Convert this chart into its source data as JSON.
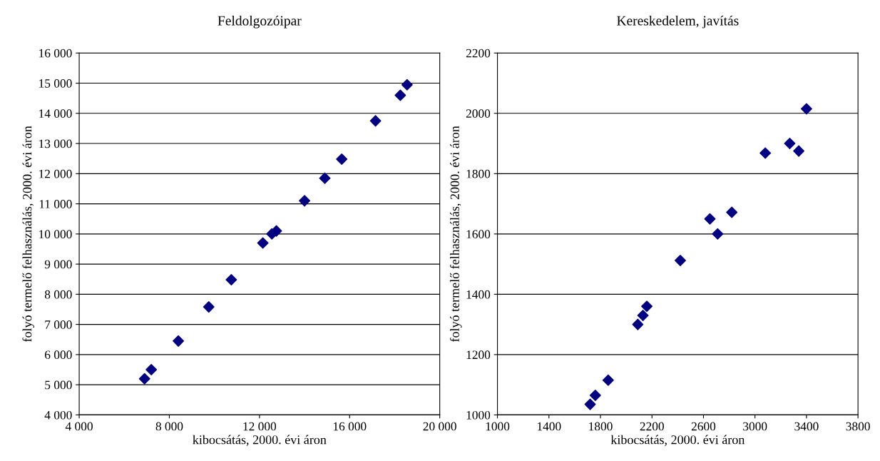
{
  "chart_data": [
    {
      "type": "scatter",
      "title": "Feldolgozóipar",
      "xlabel": "kibocsátás, 2000. évi áron",
      "ylabel": "folyó termelő felhasználás, 2000. évi áron",
      "marker": "diamond",
      "grid": "y",
      "legend": false,
      "x": [
        6900,
        7200,
        8400,
        9750,
        10750,
        12150,
        12550,
        12750,
        14000,
        14900,
        15650,
        17150,
        18250,
        18550
      ],
      "series": [
        {
          "color": "#000080",
          "values": [
            5200,
            5500,
            6450,
            7580,
            8480,
            9700,
            10000,
            10100,
            11100,
            11850,
            12480,
            13750,
            14600,
            14950
          ]
        }
      ],
      "xlim": [
        4000,
        20000
      ],
      "xticks": [
        {
          "value": 4000,
          "label": "4 000"
        },
        {
          "value": 8000,
          "label": "8 000"
        },
        {
          "value": 12000,
          "label": "12 000"
        },
        {
          "value": 16000,
          "label": "16 000"
        },
        {
          "value": 20000,
          "label": "20 000"
        }
      ],
      "ylim": [
        4000,
        16000
      ],
      "yticks": [
        {
          "value": 4000,
          "label": "4 000"
        },
        {
          "value": 5000,
          "label": "5 000"
        },
        {
          "value": 6000,
          "label": "6 000"
        },
        {
          "value": 7000,
          "label": "7 000"
        },
        {
          "value": 8000,
          "label": "8 000"
        },
        {
          "value": 9000,
          "label": "9 000"
        },
        {
          "value": 10000,
          "label": "10 000"
        },
        {
          "value": 11000,
          "label": "11 000"
        },
        {
          "value": 12000,
          "label": "12 000"
        },
        {
          "value": 13000,
          "label": "13 000"
        },
        {
          "value": 14000,
          "label": "14 000"
        },
        {
          "value": 15000,
          "label": "15 000"
        },
        {
          "value": 16000,
          "label": "16 000"
        }
      ]
    },
    {
      "type": "scatter",
      "title": "Kereskedelem, javítás",
      "xlabel": "kibocsátás, 2000. évi áron",
      "ylabel": "folyó termelő felhasználás, 2000. évi áron",
      "marker": "diamond",
      "grid": "y",
      "legend": false,
      "x": [
        1720,
        1760,
        1860,
        2090,
        2130,
        2160,
        2420,
        2650,
        2710,
        2820,
        3080,
        3270,
        3340,
        3400
      ],
      "series": [
        {
          "color": "#000080",
          "values": [
            1035,
            1065,
            1115,
            1300,
            1330,
            1360,
            1512,
            1650,
            1600,
            1672,
            1868,
            1900,
            1875,
            2015
          ]
        }
      ],
      "xlim": [
        1000,
        3800
      ],
      "xticks": [
        1000,
        1400,
        1800,
        2200,
        2600,
        3000,
        3400,
        3800
      ],
      "ylim": [
        1000,
        2200
      ],
      "yticks": [
        1000,
        1200,
        1400,
        1600,
        1800,
        2000,
        2200
      ]
    }
  ]
}
